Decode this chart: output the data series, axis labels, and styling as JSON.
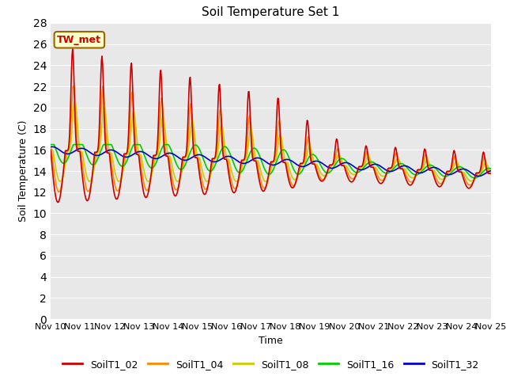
{
  "title": "Soil Temperature Set 1",
  "xlabel": "Time",
  "ylabel": "Soil Temperature (C)",
  "ylim": [
    0,
    28
  ],
  "yticks": [
    0,
    2,
    4,
    6,
    8,
    10,
    12,
    14,
    16,
    18,
    20,
    22,
    24,
    26,
    28
  ],
  "x_labels": [
    "Nov 10",
    "Nov 11",
    "Nov 12",
    "Nov 13",
    "Nov 14",
    "Nov 15",
    "Nov 16",
    "Nov 17",
    "Nov 18",
    "Nov 19",
    "Nov 20",
    "Nov 21",
    "Nov 22",
    "Nov 23",
    "Nov 24",
    "Nov 25"
  ],
  "series_colors": [
    "#cc0000",
    "#ff8800",
    "#cccc00",
    "#00cc00",
    "#0000cc"
  ],
  "series_names": [
    "SoilT1_02",
    "SoilT1_04",
    "SoilT1_08",
    "SoilT1_16",
    "SoilT1_32"
  ],
  "annotation_text": "TW_met",
  "annotation_bg": "#ffffcc",
  "annotation_border": "#996600",
  "title_fontsize": 11,
  "axis_fontsize": 9,
  "legend_fontsize": 9,
  "figsize": [
    6.4,
    4.8
  ],
  "dpi": 100
}
